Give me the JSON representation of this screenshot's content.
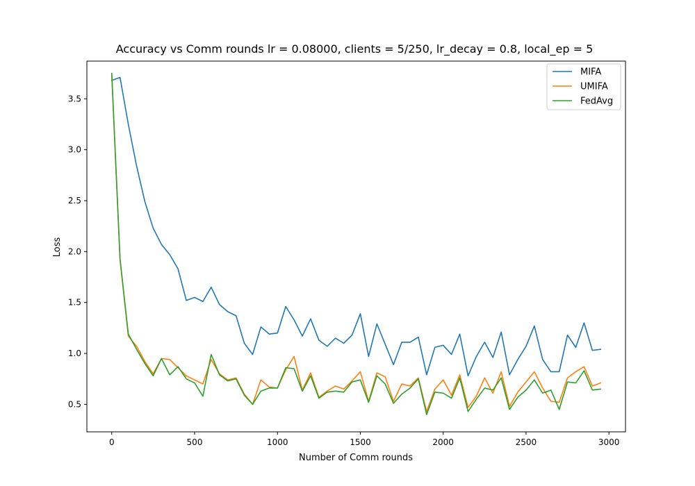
{
  "chart_data": {
    "type": "line",
    "title": "Accuracy vs Comm rounds lr = 0.08000, clients = 5/250, lr_decay = 0.8, local_ep = 5",
    "xlabel": "Number of Comm rounds",
    "ylabel": "Loss",
    "xlim": [
      -150,
      3100
    ],
    "ylim": [
      0.23,
      3.87
    ],
    "xticks": [
      0,
      500,
      1000,
      1500,
      2000,
      2500,
      3000
    ],
    "xtick_labels": [
      "0",
      "500",
      "1000",
      "1500",
      "2000",
      "2500",
      "3000"
    ],
    "yticks": [
      0.5,
      1.0,
      1.5,
      2.0,
      2.5,
      3.0,
      3.5
    ],
    "ytick_labels": [
      "0.5",
      "1.0",
      "1.5",
      "2.0",
      "2.5",
      "3.0",
      "3.5"
    ],
    "grid": false,
    "legend_position": "top-right",
    "x": [
      0,
      50,
      100,
      150,
      200,
      250,
      300,
      350,
      400,
      450,
      500,
      550,
      600,
      650,
      700,
      750,
      800,
      850,
      900,
      950,
      1000,
      1050,
      1100,
      1150,
      1200,
      1250,
      1300,
      1350,
      1400,
      1450,
      1500,
      1550,
      1600,
      1650,
      1700,
      1750,
      1800,
      1850,
      1900,
      1950,
      2000,
      2050,
      2100,
      2150,
      2200,
      2250,
      2300,
      2350,
      2400,
      2450,
      2500,
      2550,
      2600,
      2650,
      2700,
      2750,
      2800,
      2850,
      2900,
      2950
    ],
    "series": [
      {
        "name": "MIFA",
        "color": "#1f77b4",
        "values": [
          3.68,
          3.71,
          3.25,
          2.84,
          2.49,
          2.23,
          2.07,
          1.97,
          1.83,
          1.52,
          1.55,
          1.51,
          1.65,
          1.48,
          1.41,
          1.37,
          1.1,
          0.99,
          1.26,
          1.19,
          1.2,
          1.46,
          1.33,
          1.17,
          1.34,
          1.13,
          1.07,
          1.15,
          1.1,
          1.18,
          1.39,
          0.97,
          1.29,
          1.09,
          0.89,
          1.11,
          1.11,
          1.16,
          0.79,
          1.06,
          1.08,
          0.99,
          1.19,
          0.78,
          0.97,
          1.11,
          0.96,
          1.21,
          0.79,
          0.94,
          1.07,
          1.27,
          0.94,
          0.82,
          0.82,
          1.18,
          1.06,
          1.3,
          1.03,
          1.04
        ]
      },
      {
        "name": "UMIFA",
        "color": "#ff7f0e",
        "values": [
          3.74,
          1.92,
          1.17,
          1.07,
          0.92,
          0.8,
          0.95,
          0.94,
          0.86,
          0.78,
          0.74,
          0.7,
          0.94,
          0.8,
          0.74,
          0.76,
          0.6,
          0.5,
          0.74,
          0.67,
          0.66,
          0.84,
          0.97,
          0.64,
          0.81,
          0.57,
          0.63,
          0.68,
          0.65,
          0.73,
          0.82,
          0.53,
          0.81,
          0.77,
          0.53,
          0.7,
          0.68,
          0.76,
          0.43,
          0.65,
          0.74,
          0.59,
          0.79,
          0.47,
          0.58,
          0.76,
          0.61,
          0.82,
          0.48,
          0.62,
          0.72,
          0.82,
          0.66,
          0.53,
          0.52,
          0.76,
          0.82,
          0.87,
          0.68,
          0.71
        ]
      },
      {
        "name": "FedAvg",
        "color": "#2ca02c",
        "values": [
          3.75,
          1.93,
          1.19,
          1.04,
          0.9,
          0.78,
          0.95,
          0.79,
          0.87,
          0.75,
          0.71,
          0.58,
          0.99,
          0.79,
          0.73,
          0.75,
          0.59,
          0.5,
          0.63,
          0.66,
          0.66,
          0.86,
          0.85,
          0.63,
          0.78,
          0.56,
          0.62,
          0.63,
          0.62,
          0.72,
          0.74,
          0.52,
          0.78,
          0.7,
          0.51,
          0.6,
          0.66,
          0.75,
          0.4,
          0.62,
          0.61,
          0.56,
          0.76,
          0.43,
          0.55,
          0.66,
          0.64,
          0.76,
          0.45,
          0.57,
          0.64,
          0.74,
          0.61,
          0.64,
          0.45,
          0.72,
          0.71,
          0.83,
          0.64,
          0.65
        ]
      }
    ]
  }
}
